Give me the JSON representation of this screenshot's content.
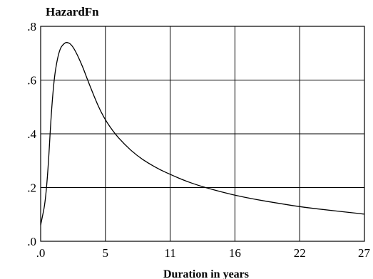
{
  "chart_data": {
    "type": "line",
    "title": "HazardFn",
    "xlabel": "Duration in years",
    "ylabel": "",
    "xlim": [
      0,
      27
    ],
    "ylim": [
      0,
      0.8
    ],
    "xticks": [
      0,
      5.4,
      10.8,
      16.2,
      21.6,
      27
    ],
    "xtick_labels": [
      ".0",
      "5",
      "11",
      "16",
      "22",
      "27"
    ],
    "yticks": [
      0,
      0.2,
      0.4,
      0.6,
      0.8
    ],
    "ytick_labels": [
      ".0",
      ".2",
      ".4",
      ".6",
      ".8"
    ],
    "grid": true,
    "legend": "none",
    "series": [
      {
        "x": [
          0,
          0.5,
          1.0,
          1.5,
          2.0,
          2.3,
          2.6,
          3.0,
          3.5,
          4.0,
          5.0,
          6.0,
          7.0,
          8.0,
          9.0,
          10.0,
          11.0,
          12.0,
          13.0,
          14.0,
          16.0,
          18.0,
          20.0,
          22.0,
          24.0,
          26.0,
          27.0
        ],
        "y": [
          0.06,
          0.17,
          0.57,
          0.71,
          0.74,
          0.74,
          0.73,
          0.7,
          0.65,
          0.59,
          0.48,
          0.41,
          0.36,
          0.32,
          0.29,
          0.265,
          0.245,
          0.226,
          0.21,
          0.197,
          0.173,
          0.155,
          0.14,
          0.126,
          0.116,
          0.106,
          0.101
        ]
      }
    ]
  }
}
